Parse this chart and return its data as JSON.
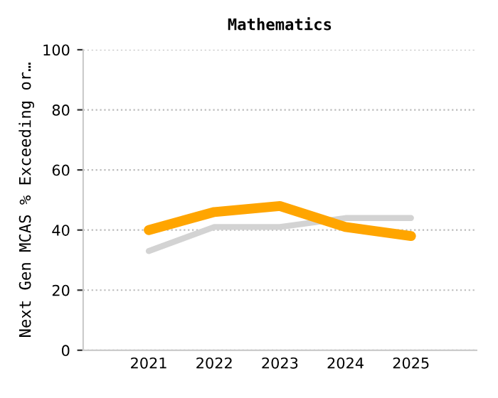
{
  "chart_data": {
    "type": "line",
    "title": "Mathematics",
    "ylabel": "Next Gen MCAS % Exceeding or…",
    "categories": [
      "2021",
      "2022",
      "2023",
      "2024",
      "2025"
    ],
    "series": [
      {
        "color": "#d3d3d3",
        "values": [
          33,
          41,
          41,
          44,
          44
        ]
      },
      {
        "color": "#ffa500",
        "values": [
          40,
          46,
          48,
          41,
          38
        ]
      }
    ],
    "ylim": [
      0,
      100
    ],
    "yticks": [
      0,
      20,
      40,
      60,
      80,
      100
    ],
    "grid": "y",
    "marker": "none",
    "line_style": "solid"
  }
}
